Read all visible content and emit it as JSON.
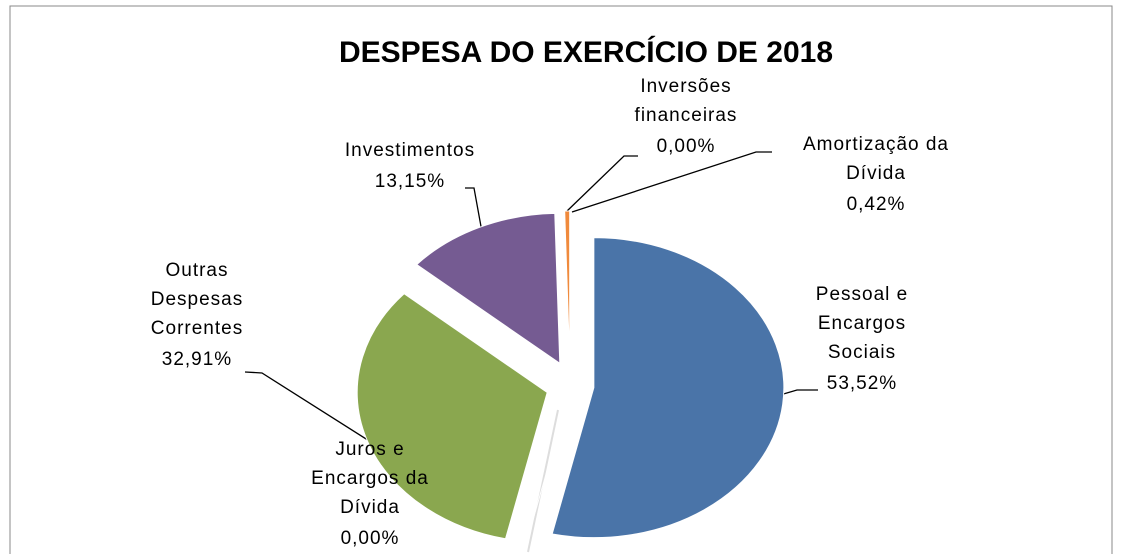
{
  "chart_data": {
    "type": "pie",
    "title": "DESPESA DO EXERCÍCIO DE 2018",
    "categories": [
      "Pessoal e Encargos Sociais",
      "Juros e Encargos da Dívida",
      "Outras Despesas Correntes",
      "Investimentos",
      "Inversões financeiras",
      "Amortização da Dívida"
    ],
    "values": [
      53.52,
      0.0,
      32.91,
      13.15,
      0.0,
      0.42
    ],
    "value_labels": [
      "53,52%",
      "0,00%",
      "32,91%",
      "13,15%",
      "0,00%",
      "0,42%"
    ],
    "colors": [
      "#4a74a8",
      "#c0504d",
      "#8aa74f",
      "#755b92",
      "#4bacc6",
      "#f08a3c"
    ]
  }
}
